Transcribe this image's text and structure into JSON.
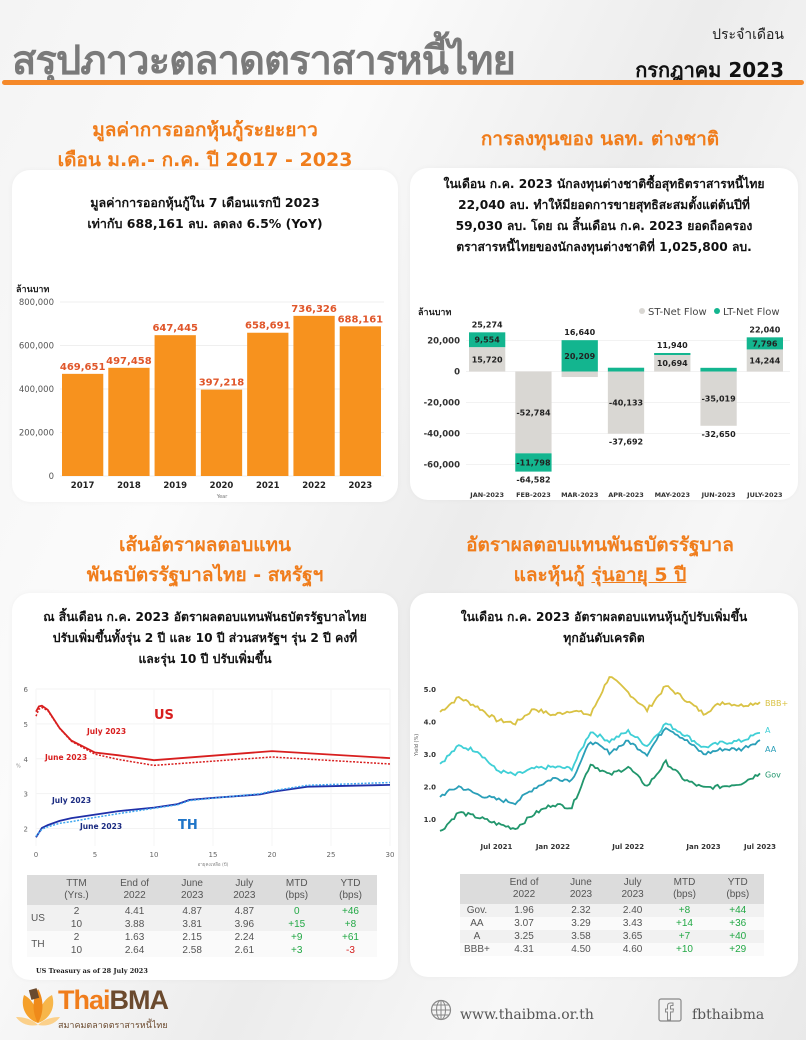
{
  "header": {
    "title": "สรุปภาวะตลาดตราสารหนี้ไทย",
    "subtitle": "ประจำเดือน",
    "month": "กรกฎาคม 2023"
  },
  "section1": {
    "title_line1": "มูลค่าการออกหุ้นกู้ระยะยาว",
    "title_line2": "เดือน ม.ค.- ก.ค. ปี 2017 - 2023",
    "text_line1": "มูลค่าการออกหุ้นกู้ใน 7 เดือนแรกปี 2023",
    "text_line2": "เท่ากับ 688,161 ลบ. ลดลง 6.5% (YoY)"
  },
  "section2": {
    "title": "การลงทุนของ นลท. ต่างชาติ",
    "text_lines": [
      "ในเดือน ก.ค. 2023 นักลงทุนต่างชาติซื้อสุทธิตราสารหนี้ไทย",
      "22,040 ลบ. ทำให้มียอดการขายสุทธิสะสมตั้งแต่ต้นปีที่",
      "59,030 ลบ. โดย ณ สิ้นเดือน ก.ค. 2023 ยอดถือครอง",
      "ตราสารหนี้ไทยของนักลงทุนต่างชาติที่ 1,025,800 ลบ."
    ]
  },
  "section3": {
    "title_line1": "เส้นอัตราผลตอบแทน",
    "title_line2": "พันธบัตรรัฐบาลไทย - สหรัฐฯ",
    "text_lines": [
      "ณ สิ้นเดือน ก.ค. 2023 อัตราผลตอบแทนพันธบัตรรัฐบาลไทย",
      "ปรับเพิ่มขึ้นทั้งรุ่น 2 ปี และ 10 ปี ส่วนสหรัฐฯ รุ่น 2 ปี คงที่",
      "และรุ่น 10 ปี ปรับเพิ่มขึ้น"
    ],
    "table": {
      "headers": [
        "",
        "TTM (Yrs.)",
        "End of 2022",
        "June 2023",
        "July 2023",
        "MTD (bps)",
        "YTD (bps)"
      ],
      "rows": [
        {
          "group": "US",
          "ttm": "2",
          "end2022": "4.41",
          "jun": "4.87",
          "jul": "4.87",
          "mtd": "0",
          "ytd": "+46"
        },
        {
          "group": "",
          "ttm": "10",
          "end2022": "3.88",
          "jun": "3.81",
          "jul": "3.96",
          "mtd": "+15",
          "ytd": "+8"
        },
        {
          "group": "TH",
          "ttm": "2",
          "end2022": "1.63",
          "jun": "2.15",
          "jul": "2.24",
          "mtd": "+9",
          "ytd": "+61"
        },
        {
          "group": "",
          "ttm": "10",
          "end2022": "2.64",
          "jun": "2.58",
          "jul": "2.61",
          "mtd": "+3",
          "ytd": "-3"
        }
      ]
    },
    "footnote": "US Treasury as of 28 July 2023"
  },
  "section4": {
    "title_line1": "อัตราผลตอบแทนพันธบัตรรัฐบาล",
    "title_line2_prefix": "และหุ้นกู้ ",
    "title_line2_underlined": "รุ่นอายุ 5 ปี",
    "text_lines": [
      "ในเดือน ก.ค. 2023 อัตราผลตอบแทนหุ้นกู้ปรับเพิ่มขึ้น",
      "ทุกอันดับเครดิต"
    ],
    "table": {
      "headers": [
        "",
        "End of 2022",
        "June 2023",
        "July 2023",
        "MTD (bps)",
        "YTD (bps)"
      ],
      "rows": [
        {
          "name": "Gov.",
          "end2022": "1.96",
          "jun": "2.32",
          "jul": "2.40",
          "mtd": "+8",
          "ytd": "+44"
        },
        {
          "name": "AA",
          "end2022": "3.07",
          "jun": "3.29",
          "jul": "3.43",
          "mtd": "+14",
          "ytd": "+36"
        },
        {
          "name": "A",
          "end2022": "3.25",
          "jun": "3.58",
          "jul": "3.65",
          "mtd": "+7",
          "ytd": "+40"
        },
        {
          "name": "BBB+",
          "end2022": "4.31",
          "jun": "4.50",
          "jul": "4.60",
          "mtd": "+10",
          "ytd": "+29"
        }
      ]
    }
  },
  "footer": {
    "logo_text_1": "Thai",
    "logo_text_2": "BMA",
    "logo_subtitle": "สมาคมตลาดตราสารหนี้ไทย",
    "website": "www.thaibma.or.th",
    "facebook": "fbthaibma",
    "website_icon": "globe-icon",
    "facebook_icon": "facebook-icon"
  },
  "chart_data": [
    {
      "type": "bar",
      "title": "",
      "ylabel": "ล้านบาท",
      "xlabel": "Year",
      "categories": [
        "2017",
        "2018",
        "2019",
        "2020",
        "2021",
        "2022",
        "2023"
      ],
      "values": [
        469651,
        497458,
        647445,
        397218,
        658691,
        736326,
        688161
      ],
      "value_labels": [
        "469,651",
        "497,458",
        "647,445",
        "397,218",
        "658,691",
        "736,326",
        "688,161"
      ],
      "ylim": [
        0,
        800000
      ],
      "yticks": [
        0,
        200000,
        400000,
        600000,
        800000
      ],
      "ytick_labels": [
        "0",
        "200,000",
        "400,000",
        "600,000",
        "800,000"
      ],
      "color": "#f7921e",
      "label_color": "#e0562a",
      "grid": true
    },
    {
      "type": "bar",
      "stacked": true,
      "ylabel": "ล้านบาท",
      "categories": [
        "JAN-2023",
        "FEB-2023",
        "MAR-2023",
        "APR-2023",
        "MAY-2023",
        "JUN-2023",
        "JULY-2023"
      ],
      "series": [
        {
          "name": "ST-Net Flow",
          "color": "#d9d7d3",
          "values": [
            15720,
            -52784,
            -3569,
            -40133,
            10694,
            -35019,
            14244
          ],
          "labels": [
            "15,720",
            "-52,784",
            "",
            "-40,133",
            "10,694",
            "-35,019",
            "14,244"
          ]
        },
        {
          "name": "LT-Net Flow",
          "color": "#13b58f",
          "values": [
            9554,
            -11798,
            20209,
            2441,
            1246,
            2369,
            7796
          ],
          "labels": [
            "9,554",
            "-11,798",
            "20,209",
            "",
            "",
            "",
            "7,796"
          ]
        }
      ],
      "totals": [
        25274,
        -64582,
        16640,
        -37692,
        11940,
        -32650,
        22040
      ],
      "total_labels": [
        "25,274",
        "-64,582",
        "16,640",
        "-37,692",
        "11,940",
        "-32,650",
        "22,040"
      ],
      "ylim": [
        -70000,
        30000
      ],
      "yticks": [
        -60000,
        -40000,
        -20000,
        0,
        20000
      ],
      "ytick_labels": [
        "-60,000",
        "-40,000",
        "-20,000",
        "0",
        "20,000"
      ],
      "legend": "top-right"
    },
    {
      "type": "line",
      "xlabel": "อายุคงเหลือ (ปี)",
      "ylabel": "%",
      "xlim": [
        0,
        30
      ],
      "ylim": [
        1.5,
        6
      ],
      "xticks": [
        0,
        5,
        10,
        15,
        20,
        25,
        30
      ],
      "yticks": [
        2,
        3,
        4,
        5,
        6
      ],
      "annotations": [
        "US",
        "TH",
        "July 2023",
        "June 2023",
        "July 2023",
        "June 2023"
      ],
      "series": [
        {
          "name": "US July 2023",
          "color": "#d81e1e",
          "dash": false,
          "x": [
            0,
            0.25,
            0.5,
            1,
            2,
            3,
            5,
            7,
            10,
            20,
            30
          ],
          "y": [
            5.35,
            5.5,
            5.52,
            5.4,
            4.88,
            4.52,
            4.18,
            4.1,
            3.96,
            4.22,
            4.02
          ]
        },
        {
          "name": "US June 2023",
          "color": "#d81e1e",
          "dash": true,
          "x": [
            0,
            0.25,
            0.5,
            1,
            2,
            3,
            5,
            7,
            10,
            20,
            30
          ],
          "y": [
            5.22,
            5.42,
            5.47,
            5.38,
            4.87,
            4.5,
            4.13,
            3.98,
            3.81,
            4.05,
            3.85
          ]
        },
        {
          "name": "TH July 2023",
          "color": "#1f2fa8",
          "dash": false,
          "x": [
            0,
            0.5,
            1,
            2,
            3,
            5,
            7,
            10,
            12,
            13,
            15,
            19,
            20,
            23,
            30
          ],
          "y": [
            1.75,
            2.02,
            2.1,
            2.22,
            2.3,
            2.4,
            2.5,
            2.6,
            2.7,
            2.82,
            2.88,
            2.98,
            3.05,
            3.2,
            3.25
          ]
        },
        {
          "name": "TH June 2023",
          "color": "#3fa7ef",
          "dash": true,
          "x": [
            0,
            0.5,
            1,
            2,
            3,
            5,
            7,
            10,
            12,
            13,
            15,
            19,
            20,
            23,
            30
          ],
          "y": [
            1.78,
            1.98,
            2.05,
            2.15,
            2.2,
            2.32,
            2.43,
            2.58,
            2.68,
            2.8,
            2.87,
            3.0,
            3.08,
            3.24,
            3.32
          ]
        }
      ]
    },
    {
      "type": "line",
      "ylabel": "Yield (%)",
      "ylim": [
        0.5,
        5.5
      ],
      "yticks": [
        1.0,
        2.0,
        3.0,
        4.0,
        5.0
      ],
      "xtick_labels": [
        "Jul 2021",
        "Jan 2022",
        "Jul 2022",
        "Jan 2023",
        "Jul 2023"
      ],
      "x": [
        "Jan 2021",
        "Mar 2021",
        "May 2021",
        "Jul 2021",
        "Sep 2021",
        "Nov 2021",
        "Jan 2022",
        "Mar 2022",
        "May 2022",
        "Jun 2022",
        "Jul 2022",
        "Sep 2022",
        "Oct 2022",
        "Nov 2022",
        "Jan 2023",
        "Mar 2023",
        "May 2023",
        "Jul 2023"
      ],
      "series": [
        {
          "name": "BBB+",
          "color": "#d9c244",
          "values": [
            4.3,
            4.75,
            4.45,
            4.05,
            3.95,
            4.4,
            4.2,
            4.35,
            4.2,
            5.4,
            4.9,
            4.35,
            5.1,
            4.7,
            4.25,
            4.6,
            4.5,
            4.6
          ]
        },
        {
          "name": "A",
          "color": "#3fcfd6",
          "values": [
            2.7,
            3.25,
            3.1,
            2.5,
            2.35,
            2.55,
            2.6,
            2.55,
            3.7,
            3.4,
            3.7,
            3.25,
            3.95,
            3.6,
            3.2,
            3.35,
            3.4,
            3.65
          ]
        },
        {
          "name": "AA",
          "color": "#2a9fb8",
          "values": [
            1.7,
            2.0,
            1.75,
            1.6,
            1.5,
            1.95,
            2.25,
            2.2,
            3.4,
            3.05,
            3.4,
            3.0,
            3.85,
            3.45,
            3.0,
            3.15,
            3.15,
            3.43
          ]
        },
        {
          "name": "Gov",
          "color": "#21966c",
          "values": [
            0.6,
            1.2,
            1.05,
            0.85,
            0.7,
            1.15,
            1.45,
            1.35,
            2.7,
            2.35,
            2.6,
            2.0,
            2.75,
            2.2,
            1.95,
            2.0,
            2.1,
            2.4
          ]
        }
      ]
    }
  ]
}
